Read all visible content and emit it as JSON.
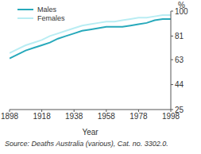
{
  "chart_data": {
    "type": "line",
    "x_label": "Year",
    "y_label": "%",
    "source": "Source: Deaths Australia (various), Cat. no. 3302.0.",
    "x": [
      1898,
      1903,
      1908,
      1913,
      1918,
      1923,
      1928,
      1933,
      1938,
      1943,
      1948,
      1953,
      1958,
      1963,
      1968,
      1973,
      1978,
      1983,
      1988,
      1993,
      1998
    ],
    "series": [
      {
        "name": "Males",
        "color": "#27a9bb",
        "values": [
          64,
          67,
          70,
          72,
          74,
          76,
          79,
          81,
          83,
          85,
          86,
          87,
          88,
          88,
          88,
          89,
          90,
          91,
          93,
          94,
          94
        ]
      },
      {
        "name": "Females",
        "color": "#b9edf3",
        "values": [
          68,
          71,
          74,
          76,
          78,
          81,
          83,
          85,
          87,
          89,
          90,
          91,
          92,
          92,
          93,
          94,
          95,
          95,
          96,
          97,
          97
        ]
      }
    ],
    "xlim": [
      1898,
      1998
    ],
    "xticks": [
      1898,
      1918,
      1938,
      1958,
      1978,
      1998
    ],
    "ylim": [
      25,
      100
    ],
    "yticks": [
      25,
      44,
      63,
      81,
      100
    ],
    "legend": "top-left",
    "grid": false
  }
}
